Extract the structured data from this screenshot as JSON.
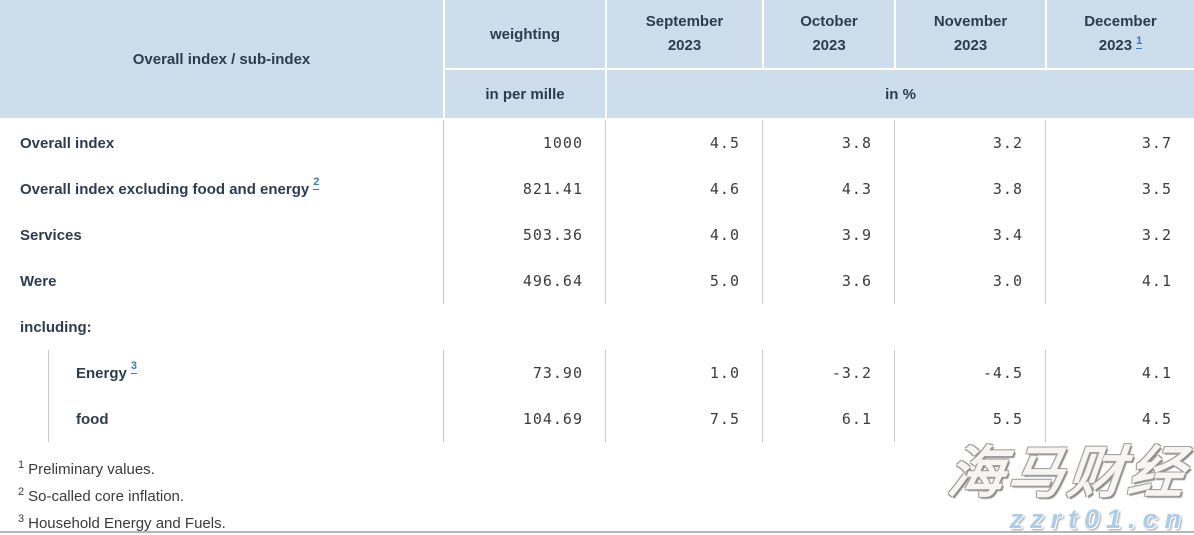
{
  "header": {
    "corner": "Overall index / sub-index",
    "weighting": {
      "title": "weighting",
      "unit": "in per mille"
    },
    "months": [
      {
        "line1": "September",
        "line2": "2023",
        "footnote": ""
      },
      {
        "line1": "October",
        "line2": "2023",
        "footnote": ""
      },
      {
        "line1": "November",
        "line2": "2023",
        "footnote": ""
      },
      {
        "line1": "December",
        "line2": "2023",
        "footnote": "1"
      }
    ],
    "percent_unit": "in %"
  },
  "rows": [
    {
      "label": "Overall index",
      "footnote": "",
      "weight": "1000",
      "values": [
        "4.5",
        "3.8",
        "3.2",
        "3.7"
      ]
    },
    {
      "label": "Overall index excluding food and energy",
      "footnote": "2",
      "weight": "821.41",
      "values": [
        "4.6",
        "4.3",
        "3.8",
        "3.5"
      ]
    },
    {
      "label": "Services",
      "footnote": "",
      "weight": "503.36",
      "values": [
        "4.0",
        "3.9",
        "3.4",
        "3.2"
      ]
    },
    {
      "label": "Were",
      "footnote": "",
      "weight": "496.64",
      "values": [
        "5.0",
        "3.6",
        "3.0",
        "4.1"
      ]
    },
    {
      "label": "including:",
      "type": "section"
    },
    {
      "label": "Energy",
      "footnote": "3",
      "indent": true,
      "weight": "73.90",
      "values": [
        "1.0",
        "-3.2",
        "-4.5",
        "4.1"
      ]
    },
    {
      "label": "food",
      "footnote": "",
      "indent": true,
      "weight": "104.69",
      "values": [
        "7.5",
        "6.1",
        "5.5",
        "4.5"
      ]
    }
  ],
  "footnotes": [
    {
      "marker": "1",
      "text": "Preliminary values."
    },
    {
      "marker": "2",
      "text": "So-called core inflation."
    },
    {
      "marker": "3",
      "text": "Household Energy and Fuels."
    }
  ],
  "watermark": {
    "name": "海马财经",
    "site": "zzrt01.cn"
  },
  "colors": {
    "header_bg": "#cdddec",
    "header_text": "#2e3d4e",
    "link_blue": "#3d7ab6",
    "divider_gray": "#cbcbcb",
    "number_text": "#3c3c3c",
    "watermark_blue": "#a9cdec"
  }
}
